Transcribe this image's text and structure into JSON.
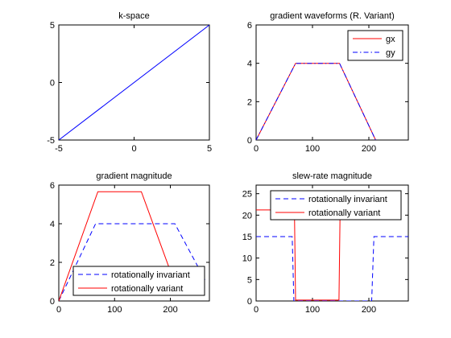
{
  "chart_data": [
    {
      "type": "line",
      "title": "k-space",
      "xlim": [
        -5,
        5
      ],
      "ylim": [
        -5,
        5
      ],
      "xticks": [
        -5,
        0,
        5
      ],
      "yticks": [
        -5,
        0,
        5
      ],
      "legend": null,
      "series": [
        {
          "color": "#0000ff",
          "style": "solid",
          "x": [
            -5,
            5
          ],
          "y": [
            -5,
            5
          ]
        }
      ]
    },
    {
      "type": "line",
      "title": "gradient waveforms (R. Variant)",
      "xlim": [
        0,
        270
      ],
      "ylim": [
        0,
        6
      ],
      "xticks": [
        0,
        100,
        200
      ],
      "yticks": [
        0,
        2,
        4,
        6
      ],
      "legend": "top-right",
      "series": [
        {
          "name": "gx",
          "color": "#ff0000",
          "style": "solid",
          "x": [
            0,
            70,
            148,
            212
          ],
          "y": [
            0,
            4,
            4,
            0
          ]
        },
        {
          "name": "gy",
          "color": "#0000ff",
          "style": "dashdot",
          "x": [
            0,
            70,
            148,
            212
          ],
          "y": [
            0,
            4,
            4,
            0
          ]
        }
      ]
    },
    {
      "type": "line",
      "title": "gradient magnitude",
      "xlim": [
        0,
        270
      ],
      "ylim": [
        0,
        6
      ],
      "xticks": [
        0,
        100,
        200
      ],
      "yticks": [
        0,
        2,
        4,
        6
      ],
      "legend": "bottom-right",
      "series": [
        {
          "name": "rotationally invariant",
          "color": "#0000ff",
          "style": "dashed",
          "x": [
            0,
            66,
            208,
            262
          ],
          "y": [
            0,
            4,
            4,
            1.1
          ]
        },
        {
          "name": "rotationally variant",
          "color": "#ff0000",
          "style": "solid",
          "x": [
            0,
            70,
            148,
            212
          ],
          "y": [
            0,
            5.66,
            5.66,
            0.6
          ]
        }
      ]
    },
    {
      "type": "line",
      "title": "slew-rate magnitude",
      "xlim": [
        0,
        270
      ],
      "ylim": [
        0,
        27
      ],
      "xticks": [
        0,
        100,
        200
      ],
      "yticks": [
        0,
        5,
        10,
        15,
        20,
        25
      ],
      "legend": "top-right",
      "series": [
        {
          "name": "rotationally invariant",
          "color": "#0000ff",
          "style": "dashed",
          "x": [
            0,
            64,
            67,
            205,
            209,
            270
          ],
          "y": [
            15,
            15,
            0,
            0,
            15,
            15
          ]
        },
        {
          "name": "rotationally variant",
          "color": "#ff0000",
          "style": "solid",
          "x": [
            0,
            68,
            70,
            147,
            149,
            155
          ],
          "y": [
            21.2,
            21.2,
            0.2,
            0.2,
            21.2,
            21.2
          ]
        }
      ]
    }
  ]
}
